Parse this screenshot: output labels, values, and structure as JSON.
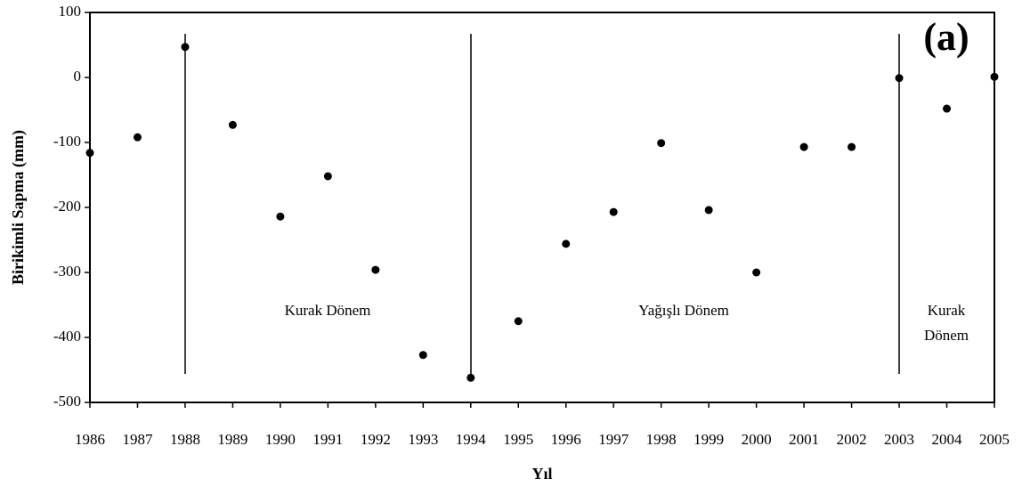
{
  "chart_data": {
    "type": "line",
    "x_label": "Yıl",
    "y_label": "Birikimli Sapma (mm)",
    "categories": [
      "1986",
      "1987",
      "1988",
      "1989",
      "1990",
      "1991",
      "1992",
      "1993",
      "1994",
      "1995",
      "1996",
      "1997",
      "1998",
      "1999",
      "2000",
      "2001",
      "2002",
      "2003",
      "2004",
      "2005"
    ],
    "series": [
      {
        "color": "#000000",
        "values": [
          -116,
          -92,
          47,
          -73,
          -214,
          -152,
          -296,
          -427,
          -462,
          -375,
          -256,
          -207,
          -101,
          -204,
          -300,
          -107,
          -107,
          -1,
          -48,
          1
        ]
      }
    ],
    "ylim": [
      -500,
      100
    ],
    "yticks": [
      -500,
      -400,
      -300,
      -200,
      -100,
      0,
      100
    ],
    "annotations": {
      "period1": "Kurak Dönem",
      "period2": "Yağışlı Dönem",
      "period3": [
        "Kurak",
        "Dönem"
      ],
      "panel": "(a)"
    }
  }
}
